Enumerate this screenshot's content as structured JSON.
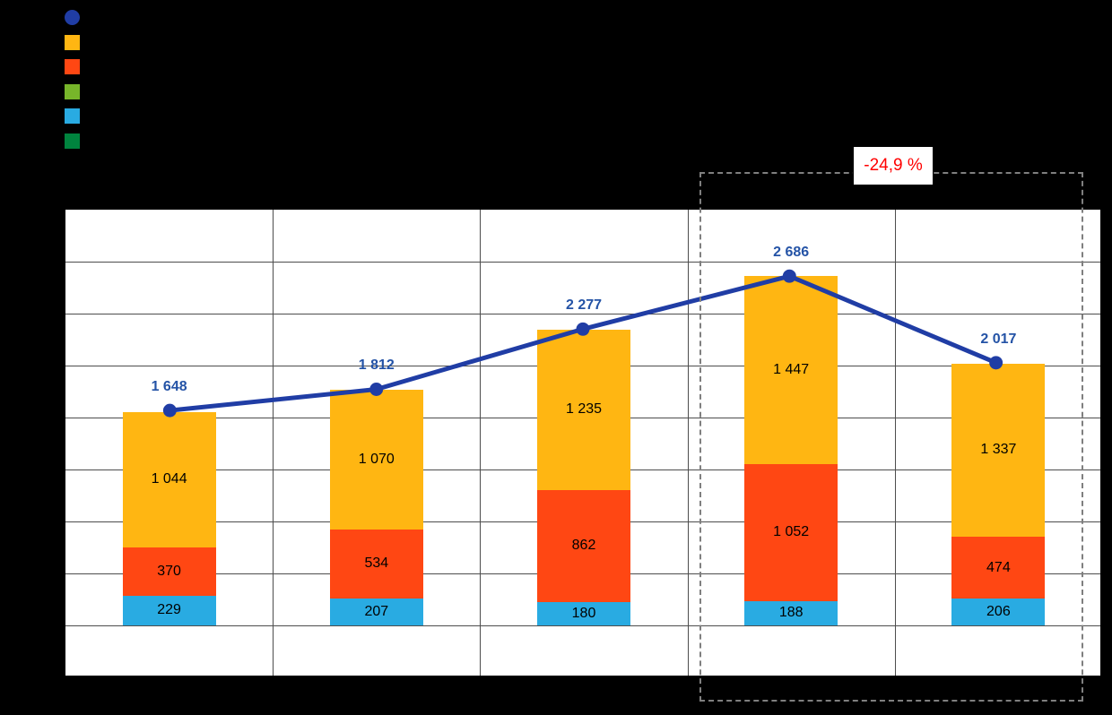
{
  "page": {
    "background": "#000000",
    "plot_background": "#ffffff"
  },
  "legend": {
    "position": "top-left",
    "items": [
      {
        "name": "total-line-marker",
        "shape": "circle",
        "color": "#203DA5",
        "label": ""
      },
      {
        "name": "amber-series-swatch",
        "shape": "square",
        "color": "#FFB612",
        "label": ""
      },
      {
        "name": "orange-series-swatch",
        "shape": "square",
        "color": "#FF4713",
        "label": ""
      },
      {
        "name": "green-series-swatch",
        "shape": "square",
        "color": "#77B52A",
        "label": ""
      },
      {
        "name": "lightblue-series-swatch",
        "shape": "square",
        "color": "#29ABE2",
        "label": ""
      },
      {
        "name": "darkgreen-series-swatch",
        "shape": "square",
        "color": "#00833E",
        "label": ""
      }
    ]
  },
  "chart_data": {
    "type": "bar",
    "stacked": true,
    "categories": [
      "",
      "",
      "",
      "",
      ""
    ],
    "series": [
      {
        "name": "lightblue",
        "color": "#29ABE2",
        "values": [
          229,
          207,
          180,
          188,
          206
        ],
        "labels": [
          "229",
          "207",
          "180",
          "188",
          "206"
        ]
      },
      {
        "name": "orange",
        "color": "#FF4713",
        "values": [
          370,
          534,
          862,
          1052,
          474
        ],
        "labels": [
          "370",
          "534",
          "862",
          "1 052",
          "474"
        ]
      },
      {
        "name": "amber",
        "color": "#FFB612",
        "values": [
          1044,
          1070,
          1235,
          1447,
          1337
        ],
        "labels": [
          "1 044",
          "1 070",
          "1 235",
          "1 447",
          "1 337"
        ]
      }
    ],
    "line_series": {
      "name": "total",
      "color": "#203DA5",
      "label_color": "#2453A6",
      "values": [
        1648,
        1812,
        2277,
        2686,
        2017
      ],
      "labels": [
        "1 648",
        "1 812",
        "2 277",
        "2 686",
        "2 017"
      ]
    },
    "ylim": [
      -400,
      3200
    ],
    "grid_step": 400,
    "grid": true,
    "legend_position": "top-left",
    "annotation": {
      "text": "-24,9 %",
      "color": "#FF0000",
      "highlighted_category_indices": [
        3,
        4
      ]
    }
  }
}
